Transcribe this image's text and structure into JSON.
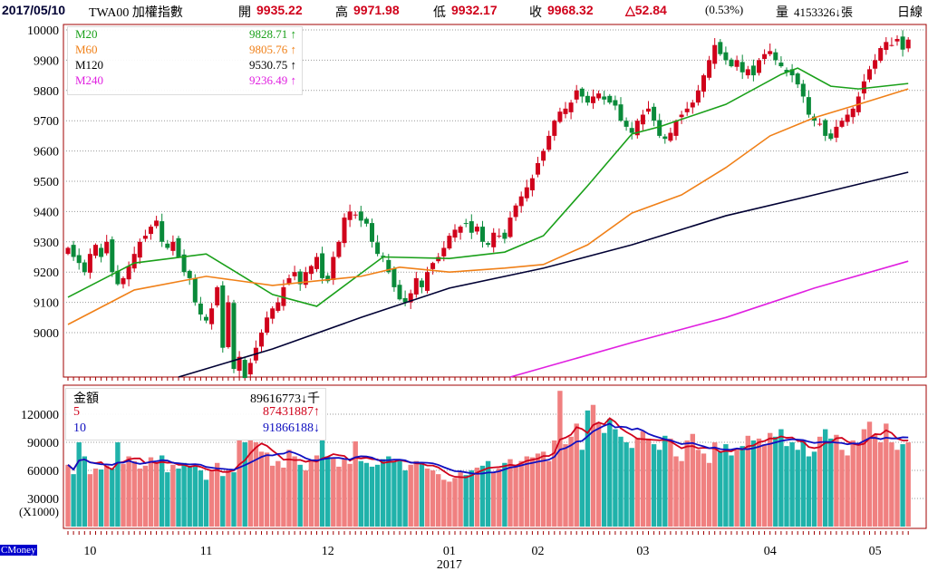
{
  "header": {
    "date": "2017/05/10",
    "symbol": "TWA00 加權指數",
    "open_label": "開",
    "open": "9935.22",
    "high_label": "高",
    "high": "9971.98",
    "low_label": "低",
    "low": "9932.17",
    "close_label": "收",
    "close": "9968.32",
    "change": "△52.84",
    "change_pct": "(0.53%)",
    "volume_label": "量",
    "volume": "4153326↓張",
    "period": "日線"
  },
  "price_legend": [
    {
      "name": "M20",
      "value": "9828.71 ↑",
      "color": "#1aa01a"
    },
    {
      "name": "M60",
      "value": "9805.76 ↑",
      "color": "#f08018"
    },
    {
      "name": "M120",
      "value": "9530.75 ↑",
      "color": "#000033"
    },
    {
      "name": "M240",
      "value": "9236.49 ↑",
      "color": "#e020e0"
    }
  ],
  "volume_legend": [
    {
      "name": "金額",
      "value": "89616773↓千",
      "color": "#000000"
    },
    {
      "name": "5",
      "value": "87431887↑",
      "color": "#d0021b"
    },
    {
      "name": "10",
      "value": "91866188↓",
      "color": "#1010c0"
    }
  ],
  "brand": "CMoney",
  "colors": {
    "up": "#d0021b",
    "down": "#0a8a3a",
    "vol_up": "#f08080",
    "vol_down": "#20b2aa",
    "frame": "#a00000"
  },
  "chart_data": [
    {
      "type": "candlestick",
      "title": "TWA00 加權指數 日線",
      "ylim": [
        8850,
        10020
      ],
      "y_ticks": [
        9000,
        9100,
        9200,
        9300,
        9400,
        9500,
        9600,
        9700,
        9800,
        9900,
        10000
      ],
      "x_month_labels": [
        {
          "label": "10",
          "bar": 4
        },
        {
          "label": "11",
          "bar": 25
        },
        {
          "label": "12",
          "bar": 47
        },
        {
          "label": "01",
          "bar": 69
        },
        {
          "label": "02",
          "bar": 85
        },
        {
          "label": "03",
          "bar": 104
        },
        {
          "label": "04",
          "bar": 127
        },
        {
          "label": "05",
          "bar": 146
        }
      ],
      "year_label": {
        "label": "2017",
        "bar": 69
      },
      "close": [
        9280,
        9250,
        9230,
        9200,
        9260,
        9290,
        9250,
        9300,
        9200,
        9160,
        9180,
        9220,
        9260,
        9300,
        9320,
        9350,
        9370,
        9300,
        9280,
        9300,
        9250,
        9200,
        9180,
        9100,
        9060,
        9040,
        9080,
        9150,
        8950,
        9100,
        8880,
        8920,
        8850,
        8900,
        8950,
        9000,
        9050,
        9080,
        9100,
        9150,
        9180,
        9200,
        9160,
        9200,
        9220,
        9250,
        9180,
        9170,
        9250,
        9300,
        9380,
        9400,
        9390,
        9370,
        9360,
        9300,
        9260,
        9250,
        9200,
        9150,
        9110,
        9100,
        9130,
        9180,
        9150,
        9200,
        9230,
        9250,
        9280,
        9320,
        9340,
        9350,
        9360,
        9330,
        9350,
        9300,
        9290,
        9330,
        9320,
        9310,
        9380,
        9420,
        9450,
        9480,
        9510,
        9560,
        9600,
        9650,
        9700,
        9730,
        9740,
        9760,
        9800,
        9780,
        9760,
        9780,
        9790,
        9770,
        9760,
        9750,
        9700,
        9680,
        9660,
        9700,
        9720,
        9740,
        9700,
        9650,
        9640,
        9660,
        9700,
        9720,
        9740,
        9760,
        9800,
        9850,
        9900,
        9950,
        9920,
        9900,
        9880,
        9900,
        9860,
        9870,
        9850,
        9900,
        9920,
        9930,
        9900,
        9880,
        9860,
        9850,
        9820,
        9780,
        9720,
        9700,
        9690,
        9650,
        9640,
        9680,
        9700,
        9720,
        9740,
        9780,
        9830,
        9870,
        9900,
        9940,
        9960,
        9950,
        9970,
        9935,
        9968
      ],
      "moving_averages": [
        {
          "name": "M20",
          "color": "#1aa01a",
          "points": [
            [
              0,
              9117
            ],
            [
              12,
              9230
            ],
            [
              25,
              9260
            ],
            [
              37,
              9126
            ],
            [
              45,
              9087
            ],
            [
              57,
              9250
            ],
            [
              69,
              9245
            ],
            [
              79,
              9266
            ],
            [
              86,
              9320
            ],
            [
              94,
              9485
            ],
            [
              102,
              9656
            ],
            [
              107,
              9680
            ],
            [
              119,
              9754
            ],
            [
              129,
              9853
            ],
            [
              132,
              9874
            ],
            [
              138,
              9814
            ],
            [
              143,
              9805
            ],
            [
              152,
              9823
            ]
          ]
        },
        {
          "name": "M60",
          "color": "#f08018",
          "points": [
            [
              0,
              9027
            ],
            [
              12,
              9141
            ],
            [
              25,
              9186
            ],
            [
              37,
              9156
            ],
            [
              53,
              9186
            ],
            [
              60,
              9216
            ],
            [
              69,
              9200
            ],
            [
              79,
              9213
            ],
            [
              86,
              9225
            ],
            [
              94,
              9290
            ],
            [
              102,
              9395
            ],
            [
              111,
              9455
            ],
            [
              119,
              9545
            ],
            [
              127,
              9650
            ],
            [
              135,
              9710
            ],
            [
              143,
              9754
            ],
            [
              152,
              9805
            ]
          ]
        },
        {
          "name": "M120",
          "color": "#000033",
          "points": [
            [
              20,
              8853
            ],
            [
              37,
              8946
            ],
            [
              53,
              9050
            ],
            [
              69,
              9147
            ],
            [
              86,
              9213
            ],
            [
              102,
              9290
            ],
            [
              119,
              9386
            ],
            [
              135,
              9455
            ],
            [
              152,
              9530
            ]
          ]
        },
        {
          "name": "M240",
          "color": "#e020e0",
          "points": [
            [
              80,
              8853
            ],
            [
              102,
              8967
            ],
            [
              119,
              9050
            ],
            [
              135,
              9147
            ],
            [
              152,
              9236
            ]
          ]
        }
      ]
    },
    {
      "type": "bar",
      "title": "金額",
      "ylabel": "(X1000)",
      "ylim": [
        0,
        150000
      ],
      "y_ticks": [
        30000,
        60000,
        90000,
        120000
      ],
      "values": [
        66000,
        56000,
        90000,
        75000,
        56000,
        62000,
        61000,
        65000,
        62000,
        90000,
        67000,
        75000,
        70000,
        62000,
        65000,
        74000,
        68000,
        76000,
        58000,
        66000,
        62000,
        68000,
        65000,
        64000,
        60000,
        50000,
        60000,
        68000,
        54000,
        60000,
        58000,
        92000,
        90000,
        92000,
        90000,
        80000,
        79000,
        65000,
        70000,
        63000,
        82000,
        75000,
        66000,
        60000,
        70000,
        76000,
        92000,
        75000,
        74000,
        64000,
        72000,
        67000,
        91000,
        70000,
        68000,
        64000,
        66000,
        72000,
        75000,
        70000,
        72000,
        60000,
        66000,
        70000,
        68000,
        62000,
        60000,
        56000,
        50000,
        48000,
        52000,
        58000,
        55000,
        60000,
        63000,
        65000,
        70000,
        58000,
        62000,
        68000,
        72000,
        66000,
        70000,
        75000,
        74000,
        78000,
        80000,
        70000,
        92000,
        145000,
        88000,
        96000,
        110000,
        82000,
        124000,
        130000,
        110000,
        100000,
        115000,
        104000,
        96000,
        90000,
        84000,
        95000,
        102000,
        94000,
        88000,
        82000,
        97000,
        94000,
        75000,
        70000,
        92000,
        99000,
        82000,
        78000,
        68000,
        90000,
        80000,
        88000,
        76000,
        82000,
        86000,
        97000,
        92000,
        94000,
        88000,
        100000,
        96000,
        104000,
        86000,
        90000,
        82000,
        92000,
        75000,
        80000,
        96000,
        104000,
        94000,
        98000,
        82000,
        76000,
        92000,
        88000,
        104000,
        112000,
        98000,
        90000,
        110000,
        90000,
        82000,
        88000,
        90000
      ],
      "series_ma": [
        {
          "name": "5",
          "period": 5,
          "color": "#d0021b"
        },
        {
          "name": "10",
          "period": 10,
          "color": "#1010c0"
        }
      ]
    }
  ]
}
